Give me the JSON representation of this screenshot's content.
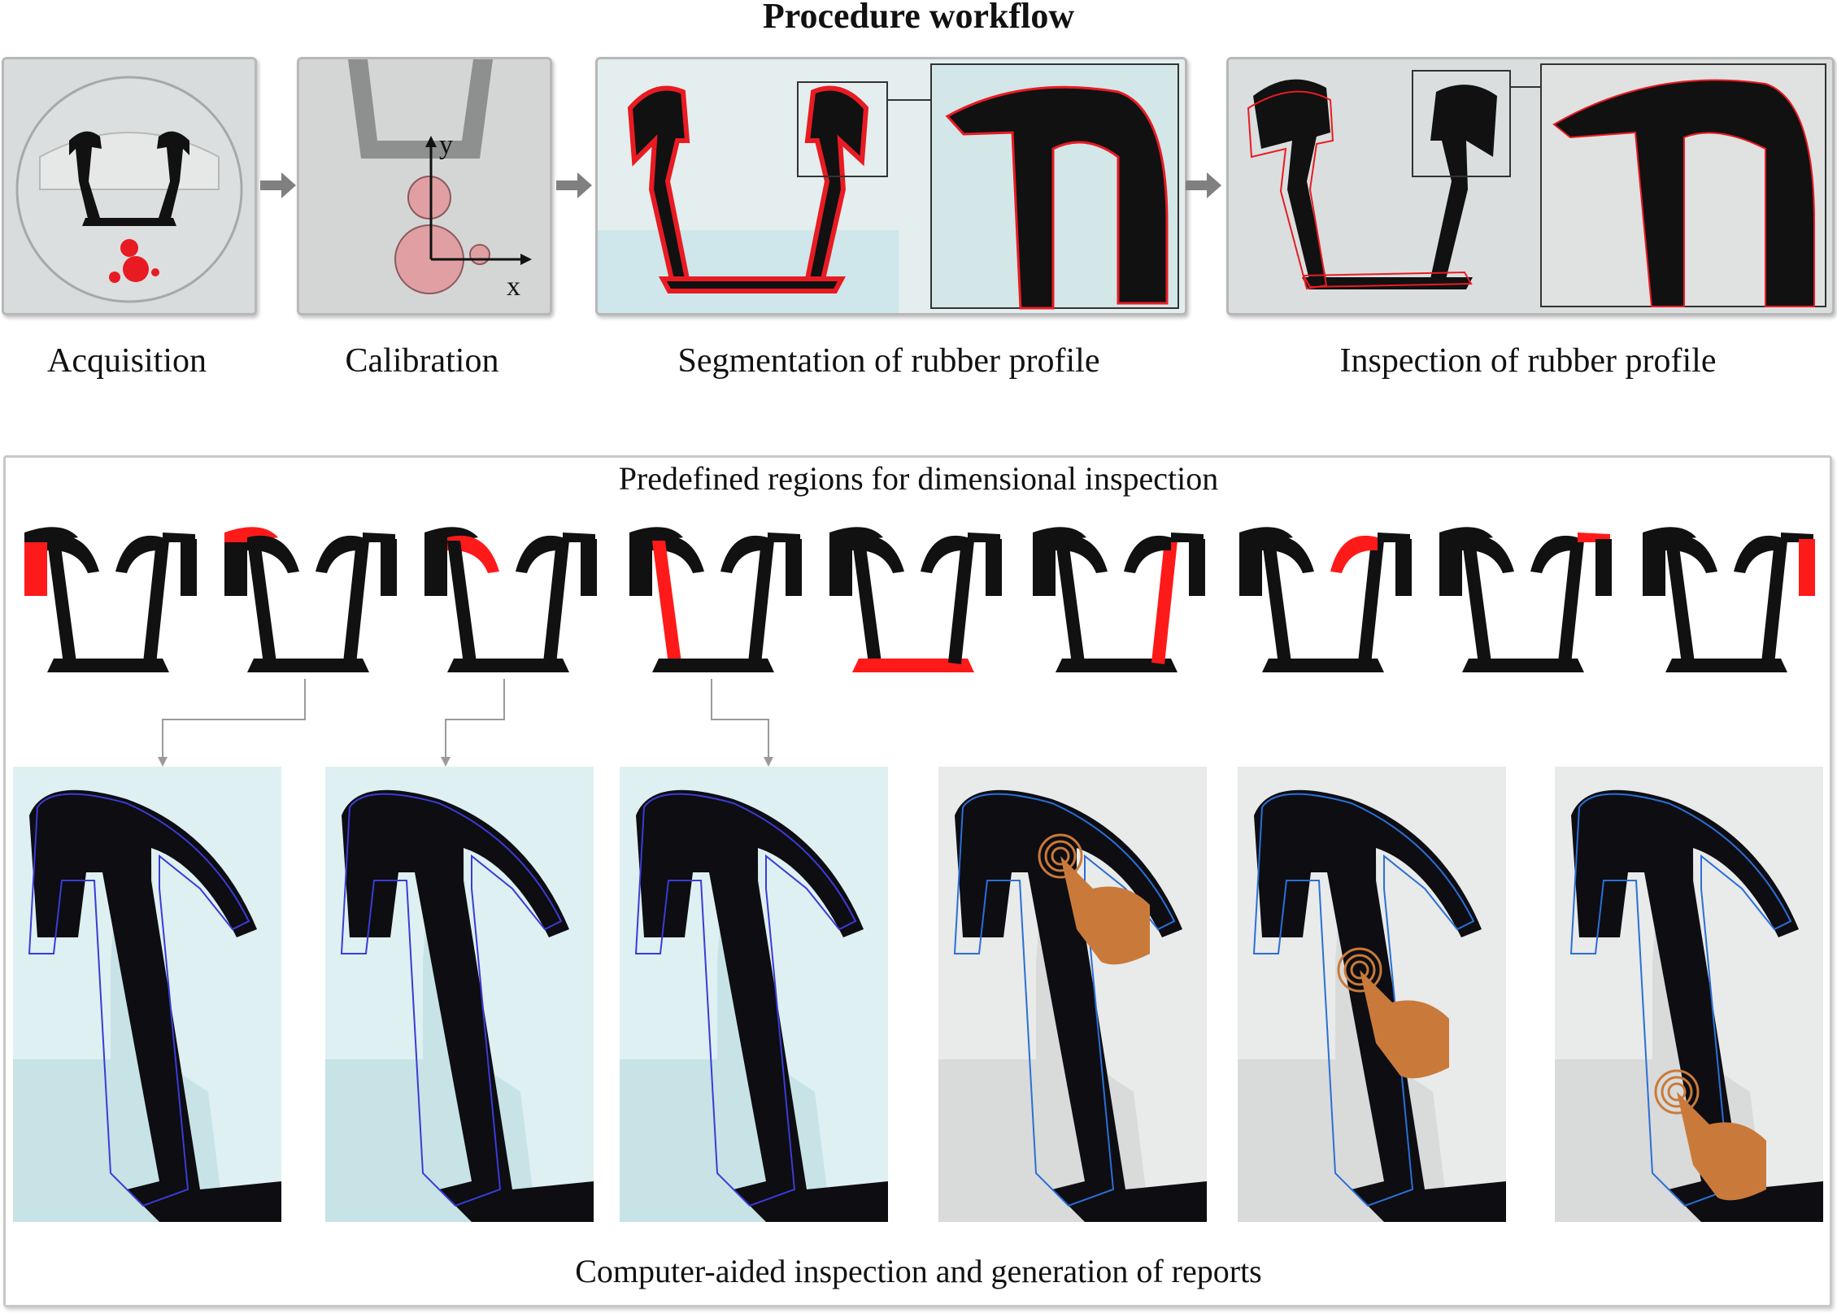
{
  "title": "Procedure workflow",
  "steps": [
    {
      "label": "Acquisition"
    },
    {
      "label": "Calibration"
    },
    {
      "label": "Segmentation of rubber profile"
    },
    {
      "label": "Inspection of rubber profile"
    }
  ],
  "calibration_axes": {
    "x": "x",
    "y": "y"
  },
  "regions_title": "Predefined regions for dimensional inspection",
  "reports_title": "Computer-aided inspection and generation of reports",
  "colors": {
    "highlight": "#ff1a1a",
    "profile": "#111111",
    "overlay_blue": "#2a6fd6",
    "hand": "#c97a3a"
  }
}
